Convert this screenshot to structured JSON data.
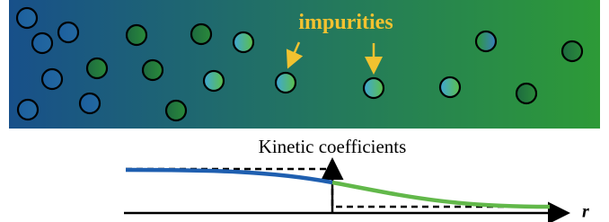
{
  "labels": {
    "impurities": "impurities",
    "plot_title": "Kinetic coefficients",
    "axis_label": "r"
  }
}
